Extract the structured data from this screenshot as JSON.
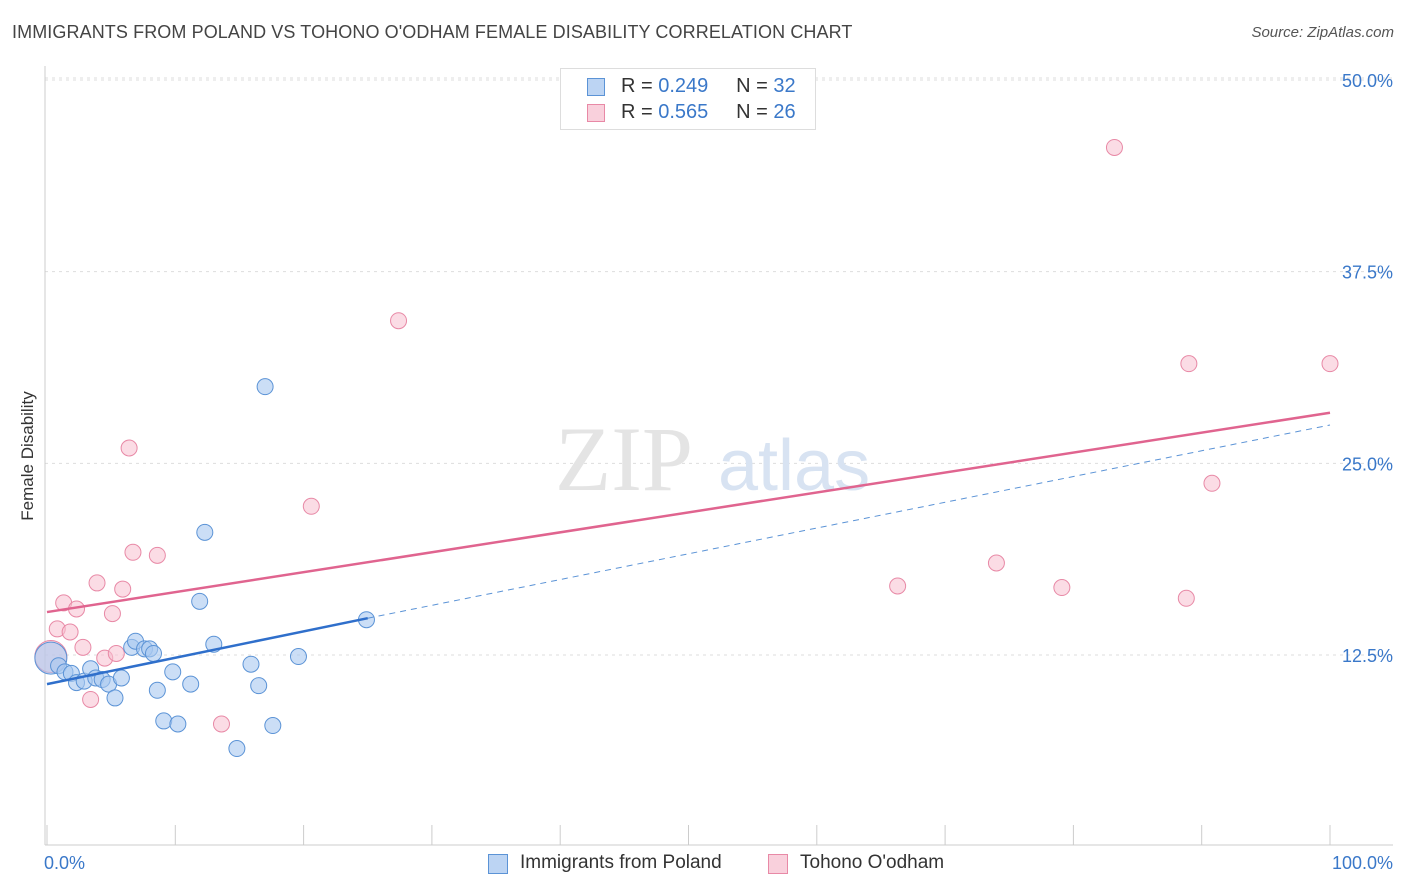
{
  "header": {
    "title": "IMMIGRANTS FROM POLAND VS TOHONO O'ODHAM FEMALE DISABILITY CORRELATION CHART",
    "source": "Source: ZipAtlas.com"
  },
  "watermark": {
    "zip": "ZIP",
    "atlas": "atlas"
  },
  "legend_top": {
    "series1": {
      "r_label": "R = ",
      "r_value": "0.249",
      "n_label": "N = ",
      "n_value": "32"
    },
    "series2": {
      "r_label": "R = ",
      "r_value": "0.565",
      "n_label": "N = ",
      "n_value": "26"
    }
  },
  "legend_bottom": {
    "series1": "Immigrants from Poland",
    "series2": "Tohono O'odham"
  },
  "colors": {
    "blue_fill": "#a9c8f0",
    "blue_stroke": "#5b93d6",
    "blue_line": "#2f6fcb",
    "pink_fill": "#f7bfd0",
    "pink_stroke": "#e889a6",
    "pink_line": "#e0648f",
    "tick_text": "#3a78c9",
    "grid": "#dddddd"
  },
  "chart_data": {
    "type": "scatter",
    "title": "IMMIGRANTS FROM POLAND VS TOHONO O'ODHAM FEMALE DISABILITY CORRELATION CHART",
    "xlabel": "",
    "ylabel": "Female Disability",
    "xlim": [
      0,
      100
    ],
    "ylim": [
      0,
      52
    ],
    "x_tick_labels": [
      "0.0%",
      "100.0%"
    ],
    "y_ticks": [
      12.5,
      25.0,
      37.5,
      50.0
    ],
    "y_tick_labels": [
      "12.5%",
      "25.0%",
      "37.5%",
      "50.0%"
    ],
    "series": [
      {
        "name": "Immigrants from Poland",
        "color": "#5b93d6",
        "r": 0.249,
        "n": 32,
        "points": [
          [
            0.3,
            12.3
          ],
          [
            0.9,
            11.8
          ],
          [
            1.4,
            11.4
          ],
          [
            1.9,
            11.3
          ],
          [
            2.3,
            10.7
          ],
          [
            2.9,
            10.8
          ],
          [
            3.4,
            11.6
          ],
          [
            3.8,
            11.0
          ],
          [
            4.3,
            10.9
          ],
          [
            4.8,
            10.6
          ],
          [
            5.3,
            9.7
          ],
          [
            5.8,
            11.0
          ],
          [
            6.6,
            13.0
          ],
          [
            6.9,
            13.4
          ],
          [
            7.6,
            12.9
          ],
          [
            8.0,
            12.9
          ],
          [
            8.3,
            12.6
          ],
          [
            8.6,
            10.2
          ],
          [
            9.1,
            8.2
          ],
          [
            9.8,
            11.4
          ],
          [
            10.2,
            8.0
          ],
          [
            11.2,
            10.6
          ],
          [
            11.9,
            16.0
          ],
          [
            12.3,
            20.5
          ],
          [
            13.0,
            13.2
          ],
          [
            14.8,
            6.4
          ],
          [
            15.9,
            11.9
          ],
          [
            16.5,
            10.5
          ],
          [
            17.0,
            30.0
          ],
          [
            17.6,
            7.9
          ],
          [
            19.6,
            12.4
          ],
          [
            24.9,
            14.8
          ]
        ],
        "trend": {
          "x1": 0,
          "y1": 10.6,
          "x2": 25,
          "y2": 14.9,
          "dashed_to_x": 100,
          "dashed_to_y": 27.5
        }
      },
      {
        "name": "Tohono O'odham",
        "color": "#e889a6",
        "r": 0.565,
        "n": 26,
        "points": [
          [
            0.3,
            12.4
          ],
          [
            0.8,
            14.2
          ],
          [
            1.3,
            15.9
          ],
          [
            1.8,
            14.0
          ],
          [
            2.3,
            15.5
          ],
          [
            2.8,
            13.0
          ],
          [
            3.4,
            9.6
          ],
          [
            3.9,
            17.2
          ],
          [
            4.5,
            12.3
          ],
          [
            5.1,
            15.2
          ],
          [
            5.4,
            12.6
          ],
          [
            5.9,
            16.8
          ],
          [
            6.4,
            26.0
          ],
          [
            6.7,
            19.2
          ],
          [
            8.6,
            19.0
          ],
          [
            13.6,
            8.0
          ],
          [
            20.6,
            22.2
          ],
          [
            27.4,
            34.3
          ],
          [
            66.3,
            17.0
          ],
          [
            74.0,
            18.5
          ],
          [
            79.1,
            16.9
          ],
          [
            83.2,
            45.6
          ],
          [
            88.8,
            16.2
          ],
          [
            89.0,
            31.5
          ],
          [
            90.8,
            23.7
          ],
          [
            100.0,
            31.5
          ]
        ],
        "trend": {
          "x1": 0,
          "y1": 15.3,
          "x2": 100,
          "y2": 28.3
        }
      }
    ]
  }
}
